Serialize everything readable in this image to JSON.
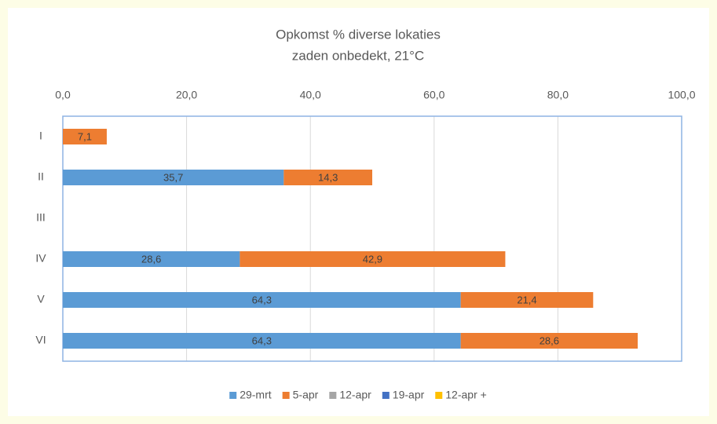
{
  "chart_data": {
    "type": "stacked-bar-horizontal",
    "title": "Opkomst % diverse lokaties",
    "subtitle": "zaden onbedekt, 21°C",
    "categories": [
      "I",
      "II",
      "III",
      "IV",
      "V",
      "VI"
    ],
    "series": [
      {
        "name": "29-mrt",
        "color": "#5b9bd5",
        "values": [
          null,
          35.7,
          null,
          28.6,
          64.3,
          64.3
        ],
        "value_labels": [
          null,
          "35,7",
          null,
          "28,6",
          "64,3",
          "64,3"
        ]
      },
      {
        "name": "5-apr",
        "color": "#ed7d31",
        "values": [
          7.1,
          14.3,
          null,
          42.9,
          21.4,
          28.6
        ],
        "value_labels": [
          "7,1",
          "14,3",
          null,
          "42,9",
          "21,4",
          "28,6"
        ]
      },
      {
        "name": "12-apr",
        "color": "#a5a5a5",
        "values": [
          null,
          null,
          null,
          null,
          null,
          null
        ]
      },
      {
        "name": "19-apr",
        "color": "#4472c4",
        "values": [
          null,
          null,
          null,
          null,
          null,
          null
        ]
      },
      {
        "name": "12-apr +",
        "color": "#ffc000",
        "values": [
          null,
          null,
          null,
          null,
          null,
          null
        ]
      }
    ],
    "xlim": [
      0,
      100
    ],
    "xticks": [
      {
        "value": 0,
        "label": "0,0"
      },
      {
        "value": 20,
        "label": "20,0"
      },
      {
        "value": 40,
        "label": "40,0"
      },
      {
        "value": 60,
        "label": "60,0"
      },
      {
        "value": 80,
        "label": "80,0"
      },
      {
        "value": 100,
        "label": "100,0"
      }
    ],
    "grid": true,
    "legend": "bottom"
  }
}
